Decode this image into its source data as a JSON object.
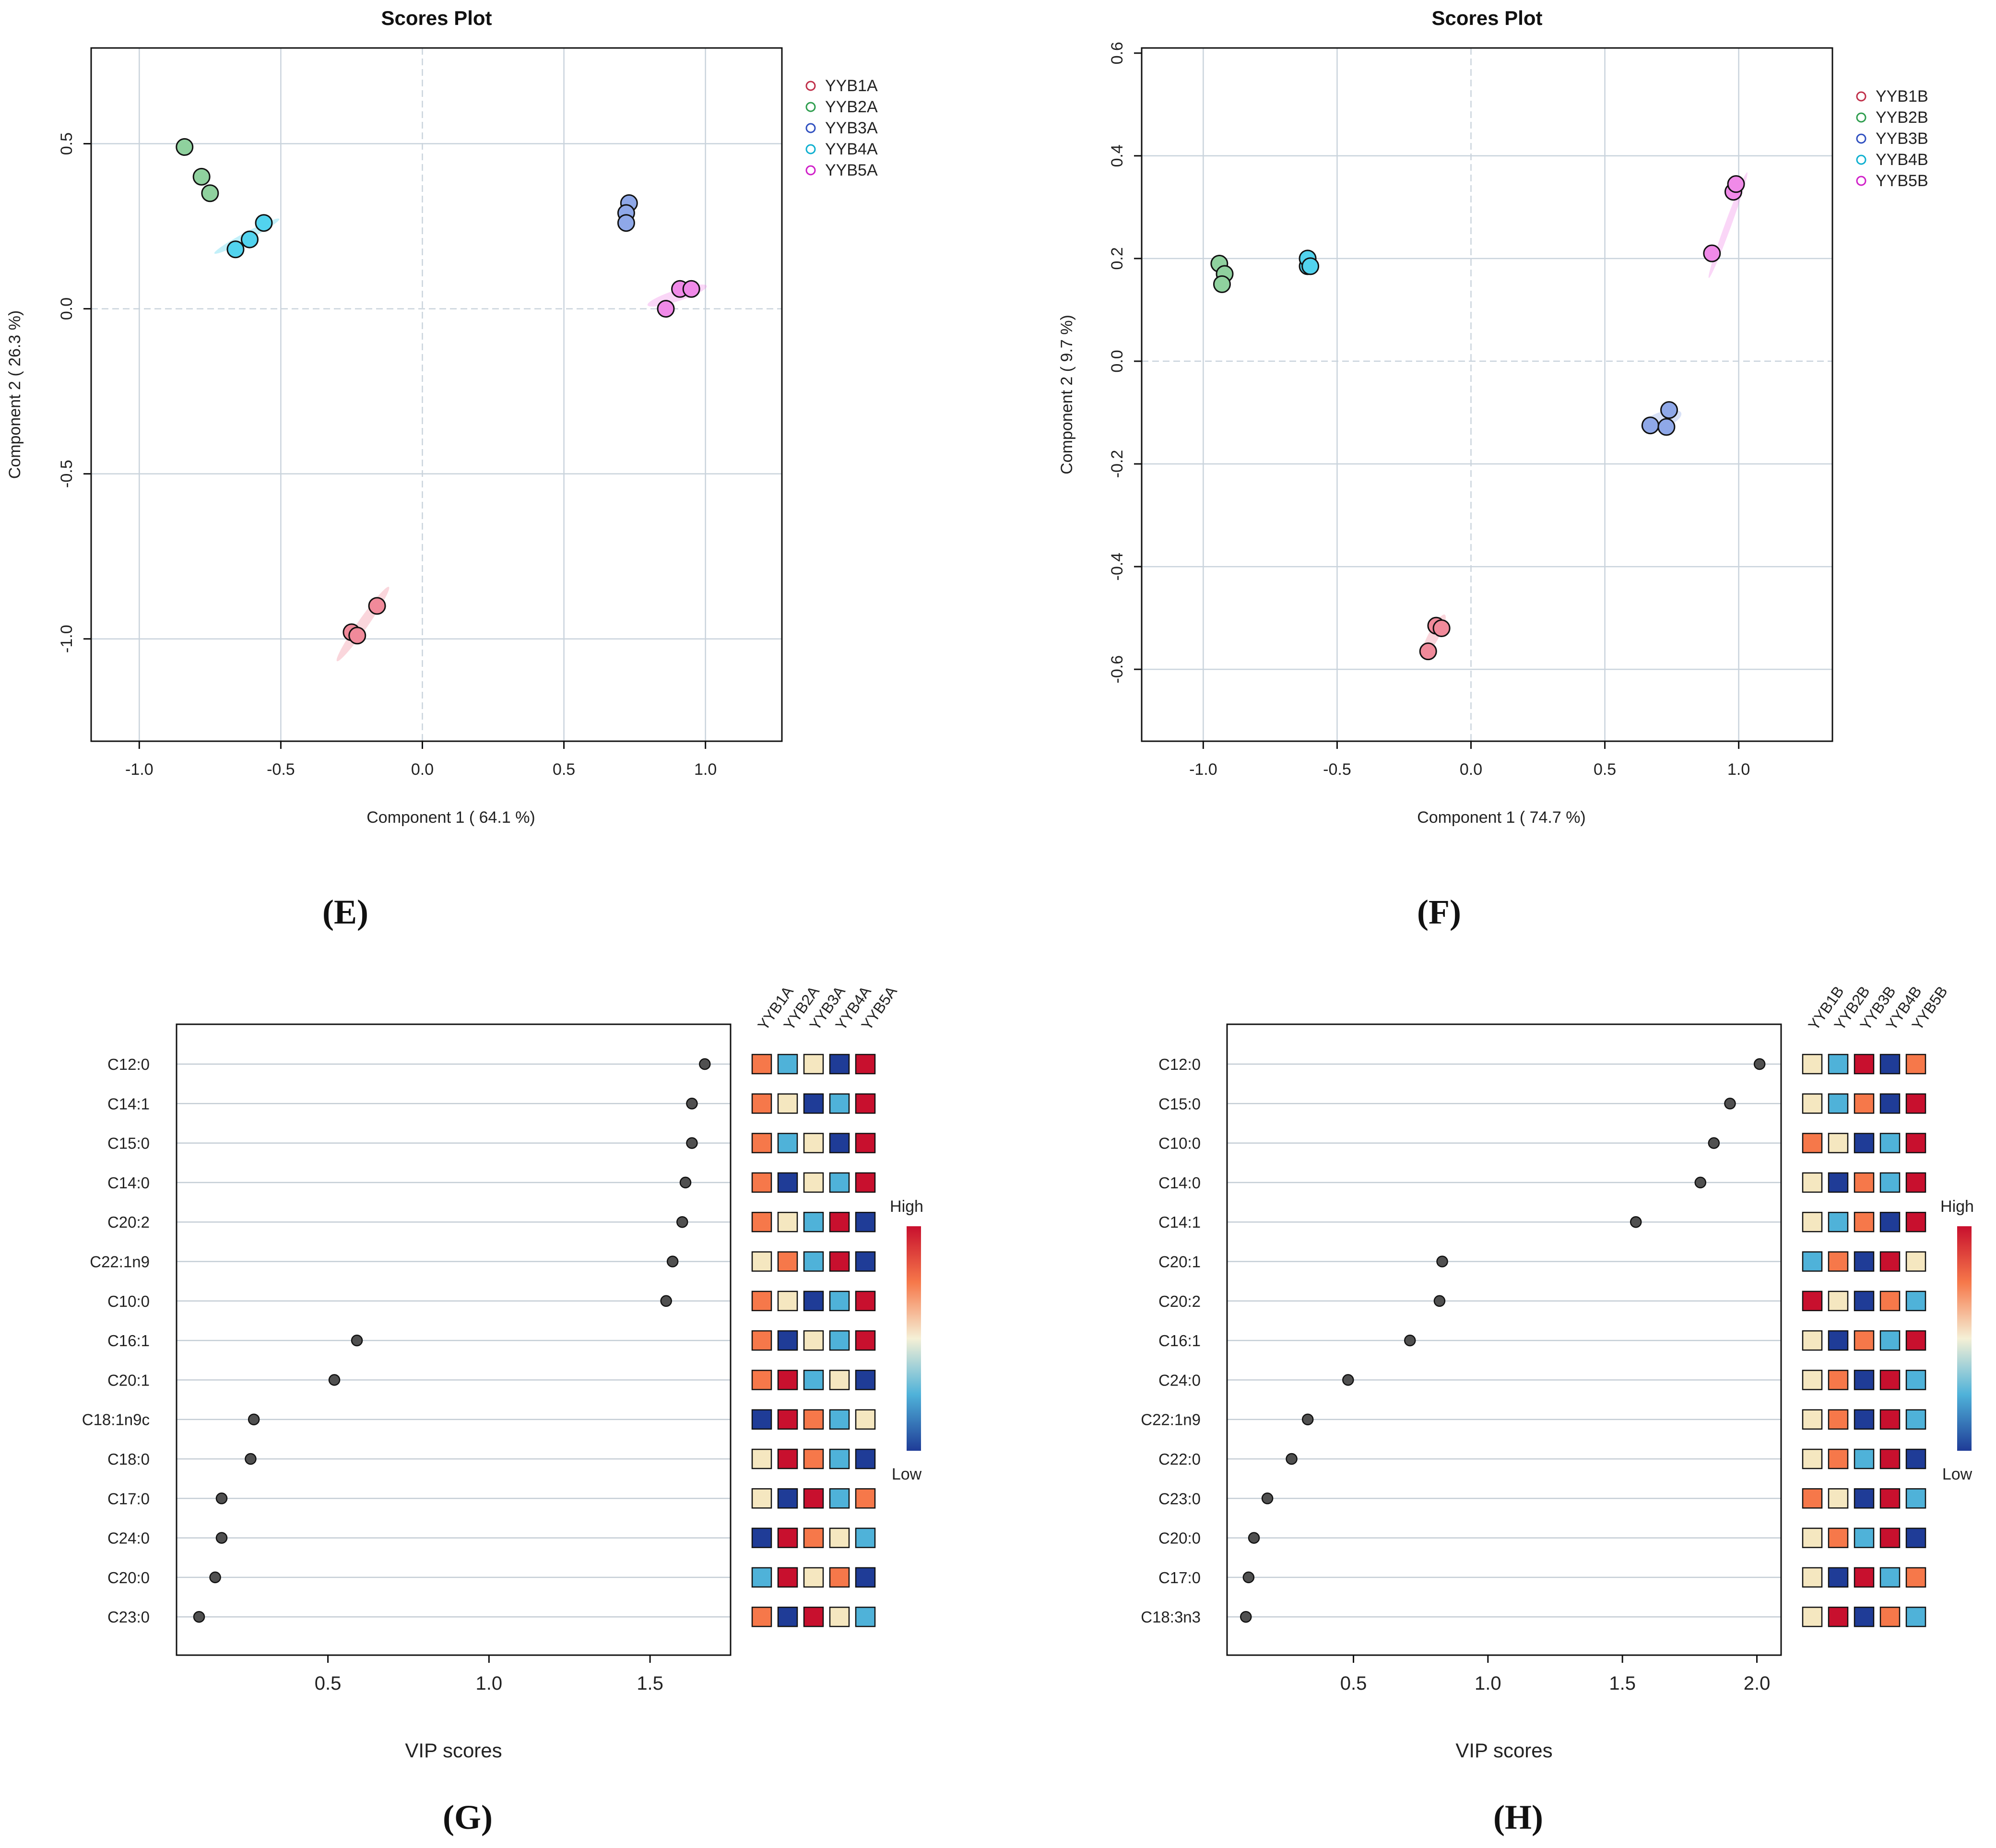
{
  "colors": {
    "YYB1": "#f08a9a",
    "YYB2": "#8fd19e",
    "YYB3": "#8fa8e8",
    "YYB4": "#52d3ee",
    "YYB5": "#f08ae8",
    "YYB1_legend": "#c0304a",
    "YYB2_legend": "#2f9e4f",
    "YYB3_legend": "#3050c0",
    "YYB4_legend": "#10b0d0",
    "YYB5_legend": "#d020c8",
    "grid": "#c9d3dc",
    "dot": "#505050",
    "heat": [
      "#1f3c97",
      "#4fb2d9",
      "#f5e7c0",
      "#f6784a",
      "#c8102e"
    ]
  },
  "chart_data": [
    {
      "id": "E",
      "type": "scatter",
      "title": "Scores Plot",
      "panel_label": "(E)",
      "xlabel": "Component 1 ( 64.1 %)",
      "ylabel": "Component 2 ( 26.3 %)",
      "xlim": [
        -1.17,
        1.27
      ],
      "ylim": [
        -1.31,
        0.79
      ],
      "xticks": [
        -1.0,
        -0.5,
        0.0,
        0.5,
        1.0
      ],
      "xtick_labels": [
        "-1.0",
        "-0.5",
        "0.0",
        "0.5",
        "1.0"
      ],
      "yticks": [
        -1.0,
        -0.5,
        0.0,
        0.5
      ],
      "ytick_labels": [
        "-1.0",
        "-0.5",
        "0.0",
        "0.5"
      ],
      "xgrid": [
        -1.0,
        -0.5,
        0.0,
        0.5,
        1.0
      ],
      "ygrid": [
        -1.0,
        -0.5,
        0.0,
        0.5
      ],
      "legend": [
        "YYB1A",
        "YYB2A",
        "YYB3A",
        "YYB4A",
        "YYB5A"
      ],
      "series": [
        {
          "name": "YYB1A",
          "group": "YYB1",
          "x": [
            -0.25,
            -0.23,
            -0.16
          ],
          "y": [
            -0.98,
            -0.99,
            -0.9
          ],
          "ellipse": {
            "cx": -0.21,
            "cy": -0.955,
            "rx": 0.16,
            "ry": 0.018,
            "angle": -55
          }
        },
        {
          "name": "YYB2A",
          "group": "YYB2",
          "x": [
            -0.84,
            -0.78,
            -0.75
          ],
          "y": [
            0.49,
            0.4,
            0.35
          ],
          "ellipse": null
        },
        {
          "name": "YYB3A",
          "group": "YYB3",
          "x": [
            0.73,
            0.72,
            0.72
          ],
          "y": [
            0.32,
            0.29,
            0.26
          ],
          "ellipse": null
        },
        {
          "name": "YYB4A",
          "group": "YYB4",
          "x": [
            -0.66,
            -0.61,
            -0.56
          ],
          "y": [
            0.18,
            0.21,
            0.26
          ],
          "ellipse": {
            "cx": -0.62,
            "cy": 0.22,
            "rx": 0.13,
            "ry": 0.014,
            "angle": -28
          }
        },
        {
          "name": "YYB5A",
          "group": "YYB5",
          "x": [
            0.86,
            0.91,
            0.95
          ],
          "y": [
            0.0,
            0.06,
            0.06
          ],
          "ellipse": {
            "cx": 0.9,
            "cy": 0.04,
            "rx": 0.11,
            "ry": 0.02,
            "angle": -18
          }
        }
      ]
    },
    {
      "id": "F",
      "type": "scatter",
      "title": "Scores Plot",
      "panel_label": "(F)",
      "xlabel": "Component 1 ( 74.7 %)",
      "ylabel": "Component 2 ( 9.7 %)",
      "xlim": [
        -1.23,
        1.35
      ],
      "ylim": [
        -0.74,
        0.61
      ],
      "xticks": [
        -1.0,
        -0.5,
        0.0,
        0.5,
        1.0
      ],
      "xtick_labels": [
        "-1.0",
        "-0.5",
        "0.0",
        "0.5",
        "1.0"
      ],
      "yticks": [
        -0.6,
        -0.4,
        -0.2,
        0.0,
        0.2,
        0.4,
        0.6
      ],
      "ytick_labels": [
        "-0.6",
        "-0.4",
        "-0.2",
        "0.0",
        "0.2",
        "0.4",
        "0.6"
      ],
      "xgrid": [
        -1.0,
        -0.5,
        0.0,
        0.5,
        1.0
      ],
      "ygrid": [
        -0.6,
        -0.4,
        -0.2,
        0.0,
        0.2,
        0.4
      ],
      "legend": [
        "YYB1B",
        "YYB2B",
        "YYB3B",
        "YYB4B",
        "YYB5B"
      ],
      "series": [
        {
          "name": "YYB1B",
          "group": "YYB1",
          "x": [
            -0.16,
            -0.13,
            -0.11
          ],
          "y": [
            -0.565,
            -0.515,
            -0.52
          ],
          "ellipse": {
            "cx": -0.14,
            "cy": -0.535,
            "rx": 0.09,
            "ry": 0.02,
            "angle": -62
          }
        },
        {
          "name": "YYB2B",
          "group": "YYB2",
          "x": [
            -0.94,
            -0.92,
            -0.93
          ],
          "y": [
            0.19,
            0.17,
            0.15
          ],
          "ellipse": null
        },
        {
          "name": "YYB3B",
          "group": "YYB3",
          "x": [
            0.67,
            0.73,
            0.74
          ],
          "y": [
            -0.125,
            -0.128,
            -0.095
          ],
          "ellipse": {
            "cx": 0.71,
            "cy": -0.115,
            "rx": 0.08,
            "ry": 0.03,
            "angle": -20
          }
        },
        {
          "name": "YYB4B",
          "group": "YYB4",
          "x": [
            -0.61,
            -0.61,
            -0.6
          ],
          "y": [
            0.185,
            0.2,
            0.185
          ],
          "ellipse": null
        },
        {
          "name": "YYB5B",
          "group": "YYB5",
          "x": [
            0.9,
            0.98,
            0.99
          ],
          "y": [
            0.21,
            0.33,
            0.345
          ],
          "ellipse": {
            "cx": 0.96,
            "cy": 0.265,
            "rx": 0.21,
            "ry": 0.012,
            "angle": -70
          }
        }
      ]
    },
    {
      "id": "G",
      "type": "dot",
      "panel_label": "(G)",
      "xlabel": "VIP scores",
      "xlim": [
        0.03,
        1.75
      ],
      "xticks": [
        0.5,
        1.0,
        1.5
      ],
      "xtick_labels": [
        "0.5",
        "1.0",
        "1.5"
      ],
      "categories": [
        "C12:0",
        "C14:1",
        "C15:0",
        "C14:0",
        "C20:2",
        "C22:1n9",
        "C10:0",
        "C16:1",
        "C20:1",
        "C18:1n9c",
        "C18:0",
        "C17:0",
        "C24:0",
        "C20:0",
        "C23:0"
      ],
      "values": [
        1.67,
        1.63,
        1.63,
        1.61,
        1.6,
        1.57,
        1.55,
        0.59,
        0.52,
        0.27,
        0.26,
        0.17,
        0.17,
        0.15,
        0.1
      ],
      "heat_columns": [
        "YYB1A",
        "YYB2A",
        "YYB3A",
        "YYB4A",
        "YYB5A"
      ],
      "heat": [
        [
          3,
          1,
          2,
          0,
          4
        ],
        [
          3,
          2,
          0,
          1,
          4
        ],
        [
          3,
          1,
          2,
          0,
          4
        ],
        [
          3,
          0,
          2,
          1,
          4
        ],
        [
          3,
          2,
          1,
          4,
          0
        ],
        [
          2,
          3,
          1,
          4,
          0
        ],
        [
          3,
          2,
          0,
          1,
          4
        ],
        [
          3,
          0,
          2,
          1,
          4
        ],
        [
          3,
          4,
          1,
          2,
          0
        ],
        [
          0,
          4,
          3,
          1,
          2
        ],
        [
          2,
          4,
          3,
          1,
          0
        ],
        [
          2,
          0,
          4,
          1,
          3
        ],
        [
          0,
          4,
          3,
          2,
          1
        ],
        [
          1,
          4,
          2,
          3,
          0
        ],
        [
          3,
          0,
          4,
          2,
          1
        ]
      ],
      "colorbar": {
        "high": "High",
        "low": "Low"
      }
    },
    {
      "id": "H",
      "type": "dot",
      "panel_label": "(H)",
      "xlabel": "VIP scores",
      "xlim": [
        0.03,
        2.09
      ],
      "xticks": [
        0.5,
        1.0,
        1.5,
        2.0
      ],
      "xtick_labels": [
        "0.5",
        "1.0",
        "1.5",
        "2.0"
      ],
      "categories": [
        "C12:0",
        "C15:0",
        "C10:0",
        "C14:0",
        "C14:1",
        "C20:1",
        "C20:2",
        "C16:1",
        "C24:0",
        "C22:1n9",
        "C22:0",
        "C23:0",
        "C20:0",
        "C17:0",
        "C18:3n3"
      ],
      "values": [
        2.01,
        1.9,
        1.84,
        1.79,
        1.55,
        0.83,
        0.82,
        0.71,
        0.48,
        0.33,
        0.27,
        0.18,
        0.13,
        0.11,
        0.1
      ],
      "heat_columns": [
        "YYB1B",
        "YYB2B",
        "YYB3B",
        "YYB4B",
        "YYB5B"
      ],
      "heat": [
        [
          2,
          1,
          4,
          0,
          3
        ],
        [
          2,
          1,
          3,
          0,
          4
        ],
        [
          3,
          2,
          0,
          1,
          4
        ],
        [
          2,
          0,
          3,
          1,
          4
        ],
        [
          2,
          1,
          3,
          0,
          4
        ],
        [
          1,
          3,
          0,
          4,
          2
        ],
        [
          4,
          2,
          0,
          3,
          1
        ],
        [
          2,
          0,
          3,
          1,
          4
        ],
        [
          2,
          3,
          0,
          4,
          1
        ],
        [
          2,
          3,
          0,
          4,
          1
        ],
        [
          2,
          3,
          1,
          4,
          0
        ],
        [
          3,
          2,
          0,
          4,
          1
        ],
        [
          2,
          3,
          1,
          4,
          0
        ],
        [
          2,
          0,
          4,
          1,
          3
        ],
        [
          2,
          4,
          0,
          3,
          1
        ]
      ],
      "colorbar": {
        "high": "High",
        "low": "Low"
      }
    }
  ]
}
